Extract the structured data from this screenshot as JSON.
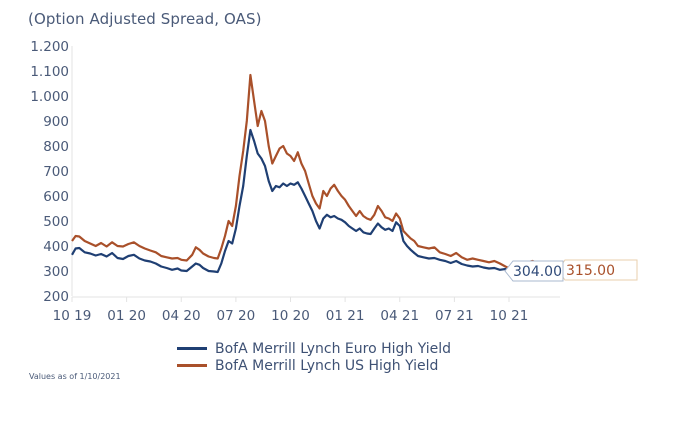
{
  "title": "(Option Adjusted Spread, OAS)",
  "footnote": "Values as of 1/10/2021",
  "chart_data": {
    "type": "line",
    "title": "(Option Adjusted Spread, OAS)",
    "xlabel": "",
    "ylabel": "",
    "x_unit": "months since Oct 2019",
    "xlim": [
      0,
      26.8
    ],
    "ylim": [
      200,
      1200
    ],
    "y_ticks": [
      200,
      300,
      400,
      500,
      600,
      700,
      800,
      900,
      1000,
      1100,
      1200
    ],
    "y_tick_labels": [
      "200",
      "300",
      "400",
      "500",
      "600",
      "700",
      "800",
      "900",
      "1.000",
      "1.100",
      "1.200"
    ],
    "x_ticks": [
      0,
      3,
      6,
      9,
      12,
      15,
      18,
      21,
      24
    ],
    "x_tick_labels": [
      "10 19",
      "01 20",
      "04 20",
      "07 20",
      "10 20",
      "01 21",
      "04 21",
      "07 21",
      "10 21"
    ],
    "grid": false,
    "legend_position": "bottom",
    "series": [
      {
        "name": "BofA Merrill Lynch Euro High Yield",
        "color": "#1f3f73",
        "end_label": "304.00",
        "points": [
          [
            0.0,
            365
          ],
          [
            0.2,
            390
          ],
          [
            0.4,
            392
          ],
          [
            0.7,
            375
          ],
          [
            1.0,
            370
          ],
          [
            1.3,
            362
          ],
          [
            1.6,
            368
          ],
          [
            1.9,
            358
          ],
          [
            2.2,
            372
          ],
          [
            2.5,
            352
          ],
          [
            2.8,
            348
          ],
          [
            3.1,
            360
          ],
          [
            3.4,
            365
          ],
          [
            3.7,
            350
          ],
          [
            4.0,
            342
          ],
          [
            4.3,
            338
          ],
          [
            4.6,
            330
          ],
          [
            4.9,
            318
          ],
          [
            5.2,
            312
          ],
          [
            5.5,
            305
          ],
          [
            5.8,
            310
          ],
          [
            6.0,
            302
          ],
          [
            6.3,
            300
          ],
          [
            6.6,
            318
          ],
          [
            6.8,
            330
          ],
          [
            7.0,
            325
          ],
          [
            7.2,
            312
          ],
          [
            7.5,
            300
          ],
          [
            7.8,
            298
          ],
          [
            8.0,
            296
          ],
          [
            8.2,
            330
          ],
          [
            8.4,
            380
          ],
          [
            8.6,
            420
          ],
          [
            8.8,
            410
          ],
          [
            9.0,
            470
          ],
          [
            9.2,
            560
          ],
          [
            9.4,
            640
          ],
          [
            9.6,
            760
          ],
          [
            9.8,
            864
          ],
          [
            10.0,
            820
          ],
          [
            10.2,
            770
          ],
          [
            10.4,
            750
          ],
          [
            10.6,
            720
          ],
          [
            10.8,
            660
          ],
          [
            11.0,
            620
          ],
          [
            11.2,
            640
          ],
          [
            11.4,
            635
          ],
          [
            11.6,
            650
          ],
          [
            11.8,
            640
          ],
          [
            12.0,
            650
          ],
          [
            12.2,
            645
          ],
          [
            12.4,
            655
          ],
          [
            12.6,
            630
          ],
          [
            12.8,
            600
          ],
          [
            13.0,
            570
          ],
          [
            13.2,
            540
          ],
          [
            13.4,
            500
          ],
          [
            13.6,
            470
          ],
          [
            13.8,
            510
          ],
          [
            14.0,
            525
          ],
          [
            14.2,
            515
          ],
          [
            14.4,
            520
          ],
          [
            14.6,
            510
          ],
          [
            14.8,
            505
          ],
          [
            15.0,
            495
          ],
          [
            15.2,
            480
          ],
          [
            15.4,
            470
          ],
          [
            15.6,
            460
          ],
          [
            15.8,
            470
          ],
          [
            16.0,
            455
          ],
          [
            16.2,
            450
          ],
          [
            16.4,
            448
          ],
          [
            16.6,
            470
          ],
          [
            16.8,
            490
          ],
          [
            17.0,
            475
          ],
          [
            17.2,
            465
          ],
          [
            17.4,
            470
          ],
          [
            17.6,
            460
          ],
          [
            17.8,
            495
          ],
          [
            18.0,
            480
          ],
          [
            18.2,
            420
          ],
          [
            18.4,
            400
          ],
          [
            18.6,
            385
          ],
          [
            18.8,
            372
          ],
          [
            19.0,
            360
          ],
          [
            19.3,
            355
          ],
          [
            19.6,
            350
          ],
          [
            19.9,
            352
          ],
          [
            20.2,
            345
          ],
          [
            20.5,
            340
          ],
          [
            20.8,
            332
          ],
          [
            21.1,
            340
          ],
          [
            21.4,
            328
          ],
          [
            21.7,
            322
          ],
          [
            22.0,
            318
          ],
          [
            22.3,
            320
          ],
          [
            22.6,
            314
          ],
          [
            22.9,
            310
          ],
          [
            23.2,
            312
          ],
          [
            23.5,
            305
          ],
          [
            23.8,
            308
          ],
          [
            24.1,
            300
          ],
          [
            24.4,
            298
          ],
          [
            24.7,
            300
          ],
          [
            25.0,
            295
          ],
          [
            25.3,
            300
          ],
          [
            25.6,
            302
          ],
          [
            25.9,
            305
          ],
          [
            26.2,
            300
          ],
          [
            26.5,
            304
          ]
        ]
      },
      {
        "name": "BofA Merrill Lynch US High Yield",
        "color": "#a9502a",
        "end_label": "315.00",
        "points": [
          [
            0.0,
            420
          ],
          [
            0.2,
            440
          ],
          [
            0.4,
            438
          ],
          [
            0.7,
            420
          ],
          [
            1.0,
            410
          ],
          [
            1.3,
            400
          ],
          [
            1.6,
            412
          ],
          [
            1.9,
            398
          ],
          [
            2.2,
            415
          ],
          [
            2.5,
            400
          ],
          [
            2.8,
            398
          ],
          [
            3.1,
            408
          ],
          [
            3.4,
            415
          ],
          [
            3.7,
            400
          ],
          [
            4.0,
            390
          ],
          [
            4.3,
            382
          ],
          [
            4.6,
            375
          ],
          [
            4.9,
            360
          ],
          [
            5.2,
            355
          ],
          [
            5.5,
            350
          ],
          [
            5.8,
            352
          ],
          [
            6.0,
            345
          ],
          [
            6.3,
            342
          ],
          [
            6.6,
            365
          ],
          [
            6.8,
            395
          ],
          [
            7.0,
            385
          ],
          [
            7.2,
            370
          ],
          [
            7.5,
            358
          ],
          [
            7.8,
            352
          ],
          [
            8.0,
            350
          ],
          [
            8.2,
            390
          ],
          [
            8.4,
            440
          ],
          [
            8.6,
            500
          ],
          [
            8.8,
            480
          ],
          [
            9.0,
            560
          ],
          [
            9.2,
            680
          ],
          [
            9.4,
            780
          ],
          [
            9.6,
            900
          ],
          [
            9.8,
            1084
          ],
          [
            10.0,
            980
          ],
          [
            10.2,
            880
          ],
          [
            10.4,
            940
          ],
          [
            10.6,
            900
          ],
          [
            10.8,
            800
          ],
          [
            11.0,
            730
          ],
          [
            11.2,
            760
          ],
          [
            11.4,
            790
          ],
          [
            11.6,
            800
          ],
          [
            11.8,
            770
          ],
          [
            12.0,
            760
          ],
          [
            12.2,
            740
          ],
          [
            12.4,
            775
          ],
          [
            12.6,
            730
          ],
          [
            12.8,
            700
          ],
          [
            13.0,
            650
          ],
          [
            13.2,
            600
          ],
          [
            13.4,
            570
          ],
          [
            13.6,
            550
          ],
          [
            13.8,
            620
          ],
          [
            14.0,
            600
          ],
          [
            14.2,
            630
          ],
          [
            14.4,
            645
          ],
          [
            14.6,
            620
          ],
          [
            14.8,
            600
          ],
          [
            15.0,
            585
          ],
          [
            15.2,
            560
          ],
          [
            15.4,
            540
          ],
          [
            15.6,
            520
          ],
          [
            15.8,
            540
          ],
          [
            16.0,
            520
          ],
          [
            16.2,
            510
          ],
          [
            16.4,
            505
          ],
          [
            16.6,
            525
          ],
          [
            16.8,
            560
          ],
          [
            17.0,
            540
          ],
          [
            17.2,
            515
          ],
          [
            17.4,
            510
          ],
          [
            17.6,
            500
          ],
          [
            17.8,
            530
          ],
          [
            18.0,
            510
          ],
          [
            18.2,
            460
          ],
          [
            18.4,
            445
          ],
          [
            18.6,
            430
          ],
          [
            18.8,
            420
          ],
          [
            19.0,
            400
          ],
          [
            19.3,
            395
          ],
          [
            19.6,
            390
          ],
          [
            19.9,
            395
          ],
          [
            20.2,
            375
          ],
          [
            20.5,
            368
          ],
          [
            20.8,
            360
          ],
          [
            21.1,
            372
          ],
          [
            21.4,
            355
          ],
          [
            21.7,
            345
          ],
          [
            22.0,
            350
          ],
          [
            22.3,
            345
          ],
          [
            22.6,
            340
          ],
          [
            22.9,
            335
          ],
          [
            23.2,
            340
          ],
          [
            23.5,
            330
          ],
          [
            23.8,
            318
          ],
          [
            24.1,
            308
          ],
          [
            24.4,
            310
          ],
          [
            24.7,
            330
          ],
          [
            25.0,
            335
          ],
          [
            25.3,
            340
          ],
          [
            25.6,
            330
          ],
          [
            25.9,
            325
          ],
          [
            26.2,
            318
          ],
          [
            26.5,
            315
          ]
        ]
      }
    ]
  },
  "legend": {
    "items": [
      {
        "label": "BofA Merrill Lynch Euro High Yield",
        "color": "#1f3f73"
      },
      {
        "label": "BofA Merrill Lynch US High Yield",
        "color": "#a9502a"
      }
    ]
  }
}
